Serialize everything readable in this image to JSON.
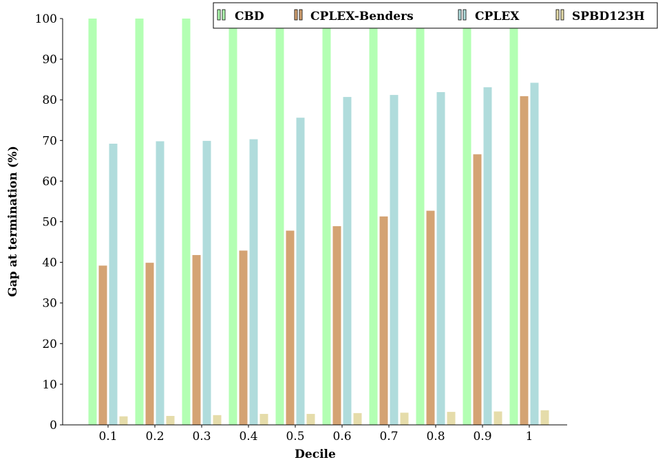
{
  "chart_data": {
    "type": "bar",
    "title": "",
    "xlabel": "Decile",
    "ylabel": "Gap at termination (%)",
    "ylim": [
      0,
      100
    ],
    "yticks": [
      0,
      10,
      20,
      30,
      40,
      50,
      60,
      70,
      80,
      90,
      100
    ],
    "categories": [
      "0.1",
      "0.2",
      "0.3",
      "0.4",
      "0.5",
      "0.6",
      "0.7",
      "0.8",
      "0.9",
      "1"
    ],
    "grid": false,
    "legend_position": "top-right",
    "series": [
      {
        "name": "CBD",
        "color": "#b3ffb3",
        "values": [
          100,
          100,
          100,
          100,
          100,
          100,
          100,
          100,
          100,
          100
        ]
      },
      {
        "name": "CPLEX-Benders",
        "color": "#d4a373",
        "values": [
          39.2,
          39.9,
          41.8,
          42.9,
          47.8,
          48.9,
          51.3,
          52.7,
          66.6,
          80.9
        ]
      },
      {
        "name": "CPLEX",
        "color": "#b0dcdc",
        "values": [
          69.2,
          69.8,
          69.9,
          70.3,
          75.6,
          80.7,
          81.2,
          81.9,
          83.1,
          84.2
        ]
      },
      {
        "name": "SPBD123H",
        "color": "#e5dcaa",
        "values": [
          2.1,
          2.2,
          2.4,
          2.7,
          2.7,
          2.9,
          3.0,
          3.2,
          3.3,
          3.6
        ]
      }
    ]
  }
}
